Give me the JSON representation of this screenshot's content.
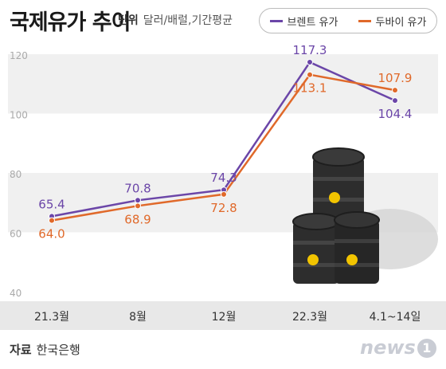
{
  "header": {
    "title": "국제유가 추이",
    "unit_label": "단위",
    "unit_text": "달러/배럴,기간평균"
  },
  "legend": {
    "brent": "브렌트 유가",
    "dubai": "두바이 유가"
  },
  "footer": {
    "source_label": "자료",
    "source_text": "한국은행",
    "logo_text": "news",
    "logo_mark": "1"
  },
  "chart_data": {
    "type": "line",
    "categories": [
      "21.3월",
      "8월",
      "12월",
      "22.3월",
      "4.1~14일"
    ],
    "series": [
      {
        "name": "브렌트 유가",
        "color": "#6b46a8",
        "values": [
          65.4,
          70.8,
          74.3,
          117.3,
          104.4
        ]
      },
      {
        "name": "두바이 유가",
        "color": "#e0692a",
        "values": [
          64.0,
          68.9,
          72.8,
          113.1,
          107.9
        ]
      }
    ],
    "yticks": [
      40,
      60,
      80,
      100,
      120
    ],
    "ylim": [
      40,
      120
    ],
    "grid": true,
    "legend_position": "top-right"
  }
}
